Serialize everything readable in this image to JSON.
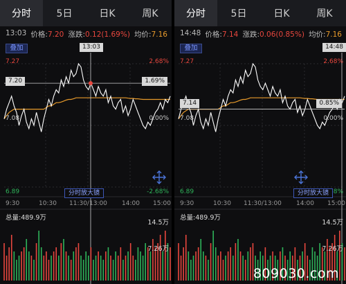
{
  "tabs": [
    "分时",
    "5日",
    "日K",
    "周K"
  ],
  "colors": {
    "up": "#e8473e",
    "down": "#2fb45a",
    "avg": "#e79a2b",
    "price": "#ffffff"
  },
  "icons": [
    "expand-arrows-icon"
  ],
  "left": {
    "info": {
      "time": "13:03",
      "price_label": "价格:",
      "price": "7.20",
      "change_label": "涨跌:",
      "change": "0.12(1.69%)",
      "avg_label": "均价:",
      "avg": "7.16"
    },
    "overlay_label": "叠加",
    "cursor_time": "13:03",
    "price_tag": "7.20",
    "pct_tag": "1.69%",
    "axis": {
      "high": "7.27",
      "open": "7.08",
      "low": "6.89",
      "high_pct": "2.68%",
      "zero_pct": "0.00%",
      "low_pct": "-2.68%"
    },
    "zoom_label": "分时放大镜",
    "times": [
      "9:30",
      "10:30",
      "11:30/13:00",
      "14:00",
      "15:00"
    ],
    "volume": {
      "total": "总量:489.9万",
      "max": "14.5万",
      "mid": "7.26万"
    }
  },
  "right": {
    "info": {
      "time": "14:48",
      "price_label": "价格:",
      "price": "7.14",
      "change_label": "涨跌:",
      "change": "0.06(0.85%)",
      "avg_label": "均价:",
      "avg": "7.16"
    },
    "overlay_label": "叠加",
    "cursor_time": "14:48",
    "price_tag": "7.14",
    "pct_tag": "0.85%",
    "axis": {
      "high": "7.27",
      "open": "7.08",
      "low": "6.89",
      "high_pct": "2.68%",
      "zero_pct": "0.00%",
      "low_pct": "-2.68%"
    },
    "zoom_label": "分时放大镜",
    "times": [
      "9:30",
      "10:30",
      "11:30/13:00",
      "14:00",
      "15:00"
    ],
    "volume": {
      "total": "总量:489.9万",
      "max": "14.5万",
      "mid": "7.26万"
    }
  },
  "chart_data": {
    "type": "line",
    "ylim": [
      6.89,
      7.27
    ],
    "series": [
      {
        "values": [
          7.1,
          7.13,
          7.15,
          7.17,
          7.14,
          7.12,
          7.08,
          7.11,
          7.13,
          7.09,
          7.07,
          7.1,
          7.08,
          7.12,
          7.09,
          7.06,
          7.1,
          7.13,
          7.16,
          7.14,
          7.17,
          7.19,
          7.18,
          7.22,
          7.2,
          7.23,
          7.21,
          7.25,
          7.23,
          7.24,
          7.27,
          7.26,
          7.22,
          7.2,
          7.19,
          7.21,
          7.19,
          7.17,
          7.2,
          7.18,
          7.17,
          7.19,
          7.15,
          7.17,
          7.14,
          7.13,
          7.15,
          7.16,
          7.12,
          7.14,
          7.11,
          7.13,
          7.16,
          7.14,
          7.12,
          7.1,
          7.08,
          7.07,
          7.09,
          7.08,
          7.1,
          7.12,
          7.13,
          7.15,
          7.13,
          7.16,
          7.15,
          7.17
        ]
      },
      {
        "values": [
          7.1,
          7.11,
          7.12,
          7.125,
          7.13,
          7.13,
          7.13,
          7.13,
          7.13,
          7.13,
          7.13,
          7.13,
          7.13,
          7.13,
          7.13,
          7.13,
          7.13,
          7.135,
          7.14,
          7.14,
          7.145,
          7.15,
          7.15,
          7.152,
          7.155,
          7.158,
          7.16,
          7.16,
          7.162,
          7.165,
          7.165,
          7.165,
          7.165,
          7.165,
          7.165,
          7.165,
          7.165,
          7.165,
          7.165,
          7.165,
          7.165,
          7.165,
          7.165,
          7.165,
          7.165,
          7.165,
          7.165,
          7.165,
          7.165,
          7.165,
          7.164,
          7.163,
          7.163,
          7.162,
          7.162,
          7.161,
          7.16,
          7.16,
          7.16,
          7.16,
          7.16,
          7.16,
          7.16,
          7.16,
          7.16,
          7.16,
          7.16,
          7.16
        ]
      }
    ],
    "volume": [
      9,
      6,
      8,
      11,
      7,
      5,
      6,
      7,
      8,
      10,
      7,
      6,
      5,
      9,
      12,
      8,
      6,
      7,
      5,
      6,
      7,
      8,
      6,
      9,
      10,
      7,
      6,
      5,
      7,
      8,
      9,
      6,
      5,
      7,
      6,
      8,
      5,
      6,
      7,
      6,
      5,
      7,
      8,
      6,
      5,
      7,
      6,
      8,
      5,
      6,
      7,
      9,
      6,
      5,
      8,
      7,
      6,
      9,
      8,
      7,
      10,
      8,
      9,
      11,
      7,
      12,
      9,
      8
    ]
  }
}
